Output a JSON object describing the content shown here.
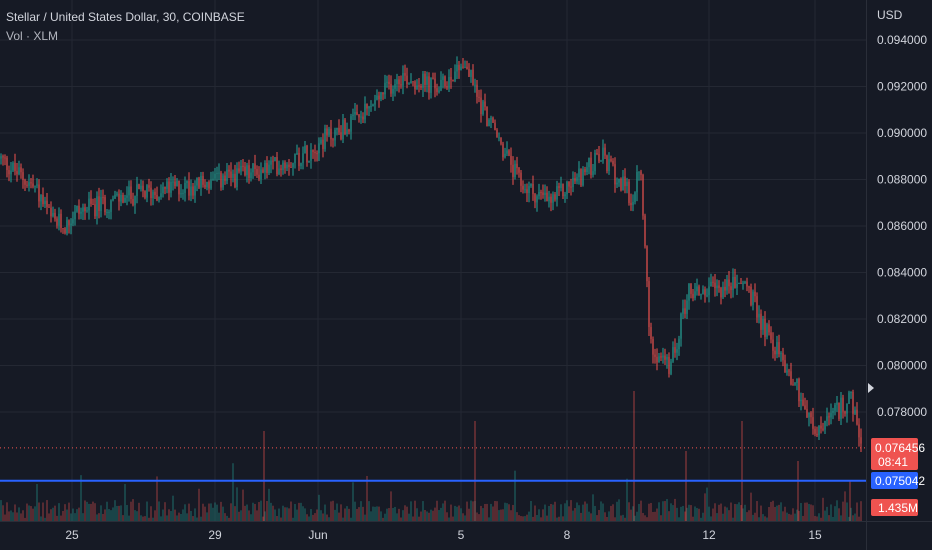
{
  "legend": {
    "title": "Stellar / United States Dollar, 30, COINBASE",
    "volume": "Vol · XLM"
  },
  "axis": {
    "currency": "USD",
    "y_ticks": [
      "0.094000",
      "0.092000",
      "0.090000",
      "0.088000",
      "0.086000",
      "0.084000",
      "0.082000",
      "0.080000",
      "0.078000"
    ],
    "x_ticks": [
      "25",
      "29",
      "Jun",
      "5",
      "8",
      "12",
      "15"
    ]
  },
  "tags": {
    "last_price": "0.076456",
    "countdown": "08:41",
    "line_price": "0.075042",
    "volume": "1.435M"
  },
  "colors": {
    "background": "#161a25",
    "grid": "#242833",
    "up": "#26a69a",
    "down": "#ef5350",
    "blue_line": "#2962ff",
    "text": "#d1d4dc"
  },
  "chart_data": {
    "type": "candlestick",
    "symbol": "Stellar / United States Dollar",
    "interval": "30",
    "exchange": "COINBASE",
    "ylim": [
      0.0745,
      0.0955
    ],
    "y_unit": "USD",
    "x_labels": [
      "25",
      "29",
      "Jun",
      "5",
      "8",
      "12",
      "15"
    ],
    "price_path": [
      [
        "22",
        0.0889
      ],
      [
        "23",
        0.0876
      ],
      [
        "24",
        0.0862
      ],
      [
        "24",
        0.086
      ],
      [
        "25",
        0.0866
      ],
      [
        "26",
        0.0874
      ],
      [
        "27",
        0.0879
      ],
      [
        "28",
        0.0884
      ],
      [
        "29",
        0.0891
      ],
      [
        "30",
        0.0896
      ],
      [
        "31",
        0.0906
      ],
      [
        "Jun",
        0.0925
      ],
      [
        "2",
        0.0919
      ],
      [
        "3",
        0.0931
      ],
      [
        "4",
        0.0925
      ],
      [
        "5",
        0.0915
      ],
      [
        "5",
        0.0878
      ],
      [
        "6",
        0.087
      ],
      [
        "7",
        0.089
      ],
      [
        "8",
        0.0874
      ],
      [
        "9",
        0.087
      ],
      [
        "10",
        0.0888
      ],
      [
        "10",
        0.081
      ],
      [
        "11",
        0.0798
      ],
      [
        "11",
        0.0832
      ],
      [
        "12",
        0.0832
      ],
      [
        "13",
        0.0836
      ],
      [
        "14",
        0.082
      ],
      [
        "15",
        0.079
      ],
      [
        "16",
        0.077
      ],
      [
        "16",
        0.0786
      ],
      [
        "16",
        0.0765
      ]
    ],
    "last_price": 0.076456,
    "horizontal_line": 0.075042,
    "volume_last": "1.435M"
  }
}
